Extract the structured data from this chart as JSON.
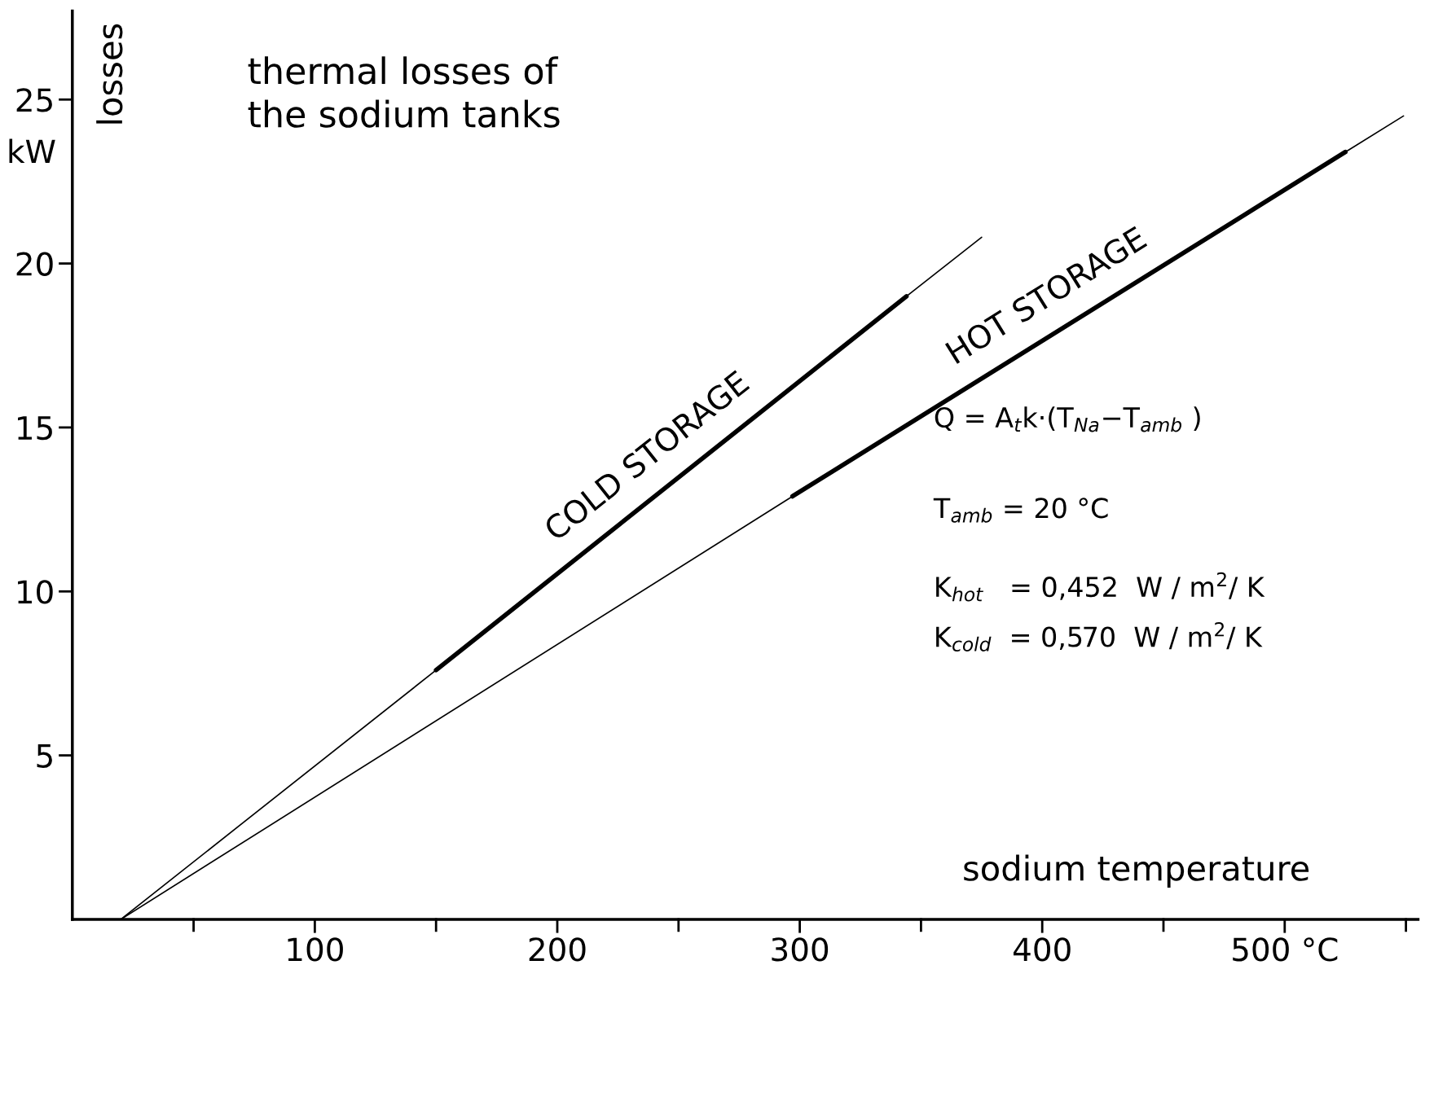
{
  "chart_data": {
    "type": "line",
    "title": "thermal losses of\nthe sodium tanks",
    "xlabel": "sodium temperature",
    "ylabel": "losses",
    "series": [
      {
        "color": "#000000",
        "x": [
          20,
          150,
          344,
          375
        ],
        "values": [
          0,
          7.6,
          19.0,
          20.8
        ]
      },
      {
        "color": "#000000",
        "x": [
          20,
          297,
          525,
          549
        ],
        "values": [
          0,
          12.9,
          23.4,
          24.5
        ]
      },
      {
        "name": "COLD STORAGE",
        "color": "#000000",
        "x": [
          150,
          344
        ],
        "values": [
          7.6,
          19.0
        ]
      },
      {
        "name": "HOT STORAGE",
        "color": "#000000",
        "x": [
          297,
          525
        ],
        "values": [
          12.9,
          23.4
        ]
      }
    ],
    "xlim": [
      0,
      555
    ],
    "ylim": [
      0,
      27.7
    ],
    "xticks": [
      {
        "value": 50,
        "label": null
      },
      100,
      {
        "value": 150,
        "label": null
      },
      200,
      {
        "value": 250,
        "label": null
      },
      300,
      {
        "value": 350,
        "label": null
      },
      400,
      {
        "value": 450,
        "label": null
      },
      {
        "value": 500,
        "label": "500 °C"
      },
      {
        "value": 550,
        "label": null
      }
    ],
    "yticks": [
      5,
      10,
      15,
      20,
      25
    ],
    "annotations": [
      "kW",
      "Q = A$_{t}$k·(T$_{Na}$−T$_{amb}$ )",
      "T$_{amb}$ = 20 °C",
      "K$_{hot}$   = 0,452  W / m$^{2}$/ K",
      "K$_{cold}$  = 0,570  W / m$^{2}$/ K"
    ],
    "grid": false,
    "legend": false,
    "marker": "none",
    "line_style": "solid"
  }
}
